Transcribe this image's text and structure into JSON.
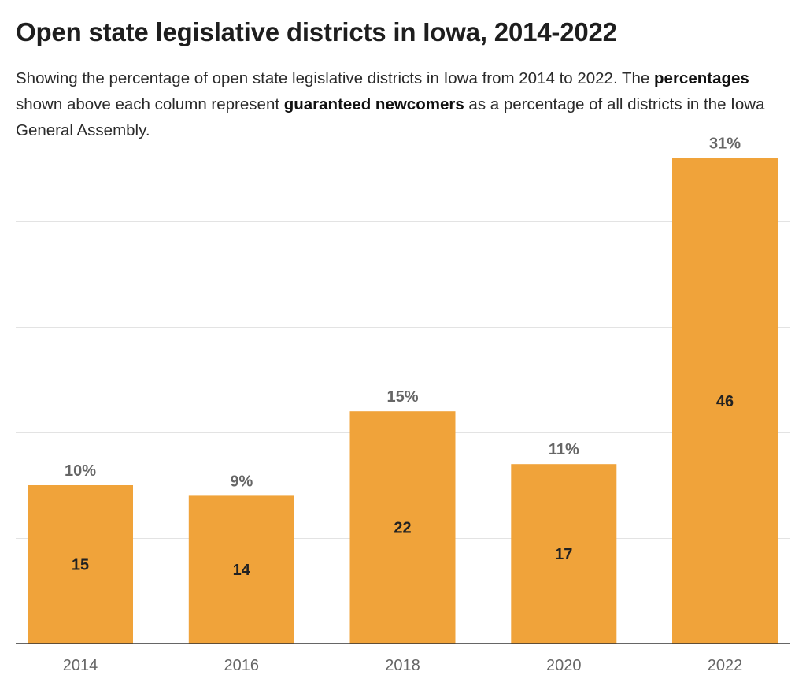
{
  "header": {
    "title": "Open state legislative districts in Iowa, 2014-2022",
    "subtitle_parts": [
      "Showing the percentage of open state legislative districts in Iowa from 2014 to 2022. The ",
      "percentages",
      " shown above each column represent ",
      "guaranteed newcomers",
      " as a percentage of all districts in the Iowa General Assembly."
    ]
  },
  "chart_data": {
    "type": "bar",
    "title": "Open state legislative districts in Iowa, 2014-2022",
    "xlabel": "",
    "ylabel": "",
    "categories": [
      "2014",
      "2016",
      "2018",
      "2020",
      "2022"
    ],
    "series": [
      {
        "values": [
          15,
          14,
          22,
          17,
          46
        ]
      }
    ],
    "percent_labels": [
      "10%",
      "9%",
      "15%",
      "11%",
      "31%"
    ],
    "ylim": [
      0,
      46
    ],
    "gridlines": [
      10,
      20,
      30,
      40
    ],
    "grid": true,
    "legend": "none",
    "bar_color": "#f0a33a"
  }
}
